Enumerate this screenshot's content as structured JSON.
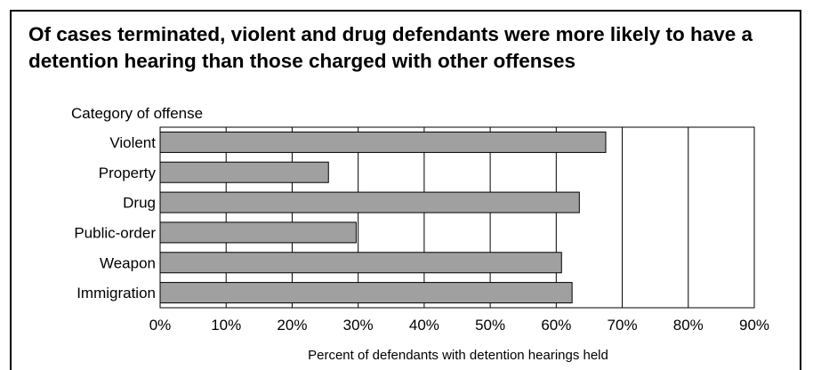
{
  "chart_data": {
    "type": "bar",
    "orientation": "horizontal",
    "title": "Of cases terminated, violent and drug defendants were more likely to have a detention hearing than those charged with other offenses",
    "ylabel": "Category of offense",
    "xlabel": "Percent of defendants with detention hearings held",
    "categories": [
      "Violent",
      "Property",
      "Drug",
      "Public-order",
      "Weapon",
      "Immigration"
    ],
    "values": [
      67.5,
      25.5,
      63.5,
      29.7,
      60.8,
      62.4
    ],
    "xlim": [
      0,
      90
    ],
    "xticks": [
      0,
      10,
      20,
      30,
      40,
      50,
      60,
      70,
      80,
      90
    ],
    "xtick_labels": [
      "0%",
      "10%",
      "20%",
      "30%",
      "40%",
      "50%",
      "60%",
      "70%",
      "80%",
      "90%"
    ],
    "grid": "vertical",
    "bar_color": "#a0a0a0"
  }
}
